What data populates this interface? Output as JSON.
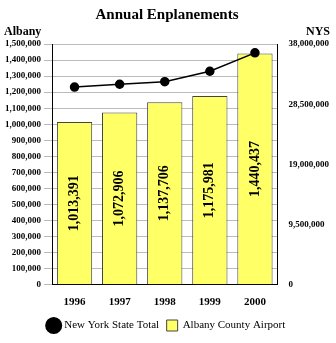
{
  "chart_data": {
    "type": "bar",
    "title": "Annual Enplanements",
    "y_label": "Albany",
    "y2_label": "NYS",
    "categories": [
      "1996",
      "1997",
      "1998",
      "1999",
      "2000"
    ],
    "series": [
      {
        "name": "Albany County Airport",
        "type": "bar",
        "color": "#ffff66",
        "data_labels": true,
        "values": [
          1013391,
          1072906,
          1137706,
          1175981,
          1440437
        ],
        "value_labels": [
          "1,013,391",
          "1,072,906",
          "1,137,706",
          "1,175,981",
          "1,440,437"
        ]
      },
      {
        "name": "New York State Total",
        "type": "line",
        "color": "#000000",
        "marker": "circle",
        "line_style": "solid",
        "axis": "y2",
        "values": [
          31200000,
          31650000,
          32050000,
          33700000,
          36600000
        ]
      }
    ],
    "ylim": [
      0,
      1500000
    ],
    "yticks": [
      0,
      {
        "value": 100000,
        "label": "100,000"
      },
      {
        "value": 200000,
        "label": "200,000"
      },
      {
        "value": 300000,
        "label": "300,000"
      },
      {
        "value": 400000,
        "label": "400,000"
      },
      {
        "value": 500000,
        "label": "500,000"
      },
      {
        "value": 600000,
        "label": "600,000"
      },
      {
        "value": 700000,
        "label": "700,000"
      },
      {
        "value": 800000,
        "label": "800,000"
      },
      {
        "value": 900000,
        "label": "900,000"
      },
      {
        "value": 1000000,
        "label": "1,000,000"
      },
      {
        "value": 1100000,
        "label": "1,100,000"
      },
      {
        "value": 1200000,
        "label": "1,200,000"
      },
      {
        "value": 1300000,
        "label": "1,300,000"
      },
      {
        "value": 1400000,
        "label": "1,400,000"
      },
      {
        "value": 1500000,
        "label": "1,500,000"
      }
    ],
    "y2lim": [
      0,
      38000000
    ],
    "y2ticks": [
      0,
      {
        "value": 9500000,
        "label": "9,500,000"
      },
      {
        "value": 19000000,
        "label": "19,000,000"
      },
      {
        "value": 28500000,
        "label": "28,500,000"
      },
      {
        "value": 38000000,
        "label": "38,000,000"
      }
    ],
    "grid": true,
    "legend": "bottom"
  }
}
